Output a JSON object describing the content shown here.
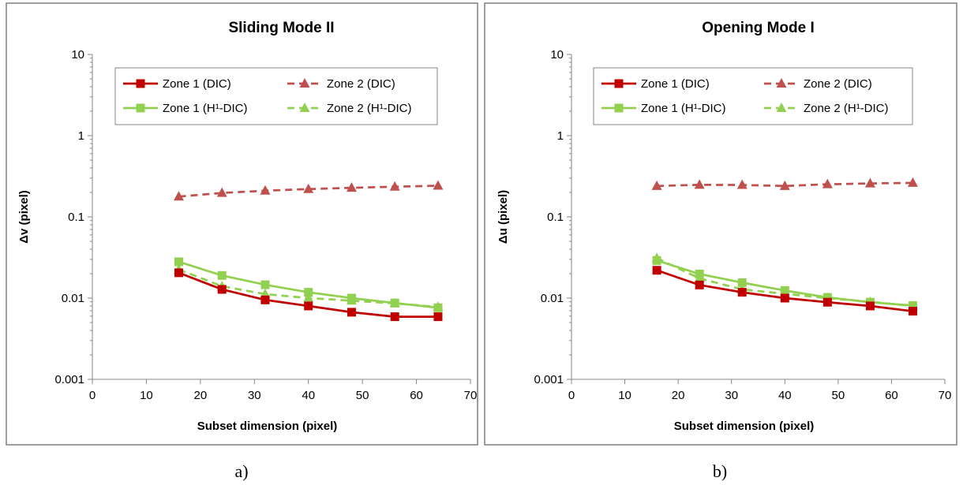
{
  "chart_data": [
    {
      "type": "line",
      "panel": "a)",
      "title": "Sliding Mode II",
      "xlabel": "Subset dimension (pixel)",
      "ylabel": "Δv (pixel)",
      "xlim": [
        0,
        70
      ],
      "xticks": [
        0,
        10,
        20,
        30,
        40,
        50,
        60,
        70
      ],
      "ylim": [
        0.001,
        10
      ],
      "yscale": "log",
      "yticks": [
        0.001,
        0.01,
        0.1,
        1,
        10
      ],
      "ytick_labels": [
        "0.001",
        "0.01",
        "0.1",
        "1",
        "10"
      ],
      "grid": "none",
      "legend_position": "top",
      "x": [
        16,
        24,
        32,
        40,
        48,
        56,
        64
      ],
      "series": [
        {
          "name": "Zone 1 (DIC)",
          "color": "#C00000",
          "dash": "solid",
          "marker": "square",
          "values": [
            0.0205,
            0.0128,
            0.0095,
            0.008,
            0.0067,
            0.0059,
            0.0059
          ]
        },
        {
          "name": "Zone 2 (DIC)",
          "color": "#C0504D",
          "dash": "dashed",
          "marker": "triangle",
          "values": [
            0.178,
            0.197,
            0.21,
            0.22,
            0.228,
            0.235,
            0.242
          ]
        },
        {
          "name": "Zone 1 (H¹-DIC)",
          "color": "#92D050",
          "dash": "solid",
          "marker": "square",
          "values": [
            0.028,
            0.019,
            0.0146,
            0.0118,
            0.01,
            0.0087,
            0.0076
          ]
        },
        {
          "name": "Zone 2 (H¹-DIC)",
          "color": "#92D050",
          "dash": "dashed",
          "marker": "triangle",
          "values": [
            0.0225,
            0.014,
            0.0112,
            0.01,
            0.0093,
            0.0086,
            0.0078
          ]
        }
      ]
    },
    {
      "type": "line",
      "panel": "b)",
      "title": "Opening Mode I",
      "xlabel": "Subset dimension (pixel)",
      "ylabel": "Δu (pixel)",
      "xlim": [
        0,
        70
      ],
      "xticks": [
        0,
        10,
        20,
        30,
        40,
        50,
        60,
        70
      ],
      "ylim": [
        0.001,
        10
      ],
      "yscale": "log",
      "yticks": [
        0.001,
        0.01,
        0.1,
        1,
        10
      ],
      "ytick_labels": [
        "0.001",
        "0.01",
        "0.1",
        "1",
        "10"
      ],
      "grid": "none",
      "legend_position": "top",
      "x": [
        16,
        24,
        32,
        40,
        48,
        56,
        64
      ],
      "series": [
        {
          "name": "Zone 1 (DIC)",
          "color": "#C00000",
          "dash": "solid",
          "marker": "square",
          "values": [
            0.022,
            0.0145,
            0.0118,
            0.01,
            0.0089,
            0.008,
            0.0069
          ]
        },
        {
          "name": "Zone 2 (DIC)",
          "color": "#C0504D",
          "dash": "dashed",
          "marker": "triangle",
          "values": [
            0.24,
            0.248,
            0.247,
            0.24,
            0.252,
            0.258,
            0.262
          ]
        },
        {
          "name": "Zone 1 (H¹-DIC)",
          "color": "#92D050",
          "dash": "solid",
          "marker": "square",
          "values": [
            0.029,
            0.0198,
            0.0155,
            0.0124,
            0.0102,
            0.0089,
            0.0081
          ]
        },
        {
          "name": "Zone 2 (H¹-DIC)",
          "color": "#92D050",
          "dash": "dashed",
          "marker": "triangle",
          "values": [
            0.031,
            0.0175,
            0.0128,
            0.0113,
            0.01,
            0.009,
            0.008
          ]
        }
      ]
    }
  ]
}
